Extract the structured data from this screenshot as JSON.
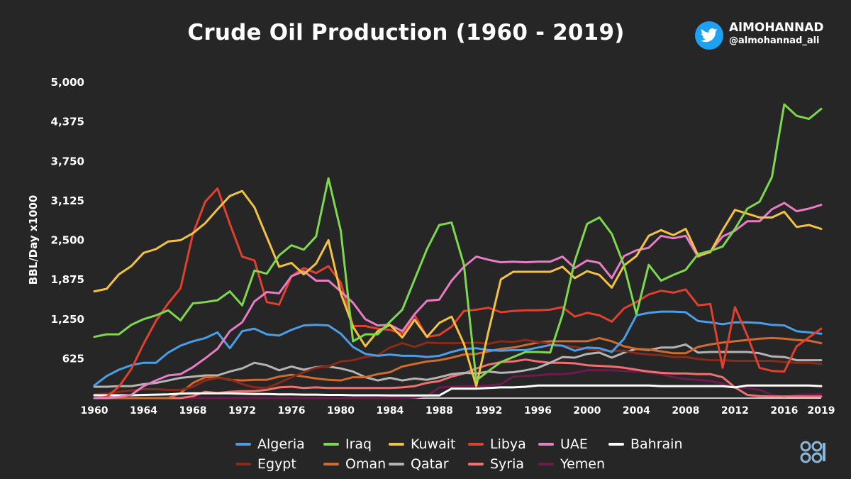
{
  "brand": {
    "name": "AlMOHANNAD",
    "handle": "@almohannad_ali",
    "icon": "twitter-bird-icon",
    "icon_color": "#1da1f2"
  },
  "logo": {
    "icon": "opec-logo-icon",
    "color": "#8ab8d8"
  },
  "chart_data": {
    "type": "line",
    "title": "Crude Oil Production (1960 - 2019)",
    "xlabel": "",
    "ylabel": "BBL/Day x1000",
    "x": [
      1960,
      1961,
      1962,
      1963,
      1964,
      1965,
      1966,
      1967,
      1968,
      1969,
      1970,
      1971,
      1972,
      1973,
      1974,
      1975,
      1976,
      1977,
      1978,
      1979,
      1980,
      1981,
      1982,
      1983,
      1984,
      1985,
      1986,
      1987,
      1988,
      1989,
      1990,
      1991,
      1992,
      1993,
      1994,
      1995,
      1996,
      1997,
      1998,
      1999,
      2000,
      2001,
      2002,
      2003,
      2004,
      2005,
      2006,
      2007,
      2008,
      2009,
      2010,
      2011,
      2012,
      2013,
      2014,
      2015,
      2016,
      2017,
      2018,
      2019
    ],
    "x_ticks": [
      1960,
      1964,
      1968,
      1972,
      1976,
      1980,
      1984,
      1988,
      1992,
      1996,
      2000,
      2004,
      2008,
      2012,
      2016,
      2019
    ],
    "y_ticks": [
      625,
      1250,
      1875,
      2500,
      3125,
      3750,
      4375,
      5000
    ],
    "y_tick_labels": [
      "625",
      "1,250",
      "1,875",
      "2,500",
      "3,125",
      "3,750",
      "4,375",
      "5,000"
    ],
    "ylim": [
      0,
      5000
    ],
    "xlim": [
      1960,
      2019
    ],
    "grid": false,
    "legend_position": "bottom",
    "series": [
      {
        "name": "Algeria",
        "color": "#4a9ee8",
        "values": [
          200,
          350,
          450,
          520,
          560,
          560,
          720,
          830,
          900,
          950,
          1040,
          790,
          1060,
          1100,
          1010,
          990,
          1080,
          1150,
          1160,
          1150,
          1020,
          810,
          700,
          670,
          690,
          670,
          670,
          650,
          670,
          730,
          780,
          790,
          760,
          750,
          760,
          760,
          800,
          840,
          830,
          750,
          800,
          790,
          730,
          940,
          1310,
          1350,
          1370,
          1370,
          1360,
          1220,
          1200,
          1170,
          1200,
          1200,
          1190,
          1160,
          1150,
          1060,
          1040,
          1020
        ]
      },
      {
        "name": "Iraq",
        "color": "#7ed84e",
        "values": [
          970,
          1010,
          1010,
          1160,
          1250,
          1310,
          1390,
          1230,
          1500,
          1520,
          1550,
          1690,
          1470,
          2020,
          1970,
          2260,
          2420,
          2350,
          2560,
          3480,
          2650,
          900,
          1010,
          1010,
          1210,
          1400,
          1880,
          2360,
          2740,
          2780,
          2110,
          280,
          430,
          570,
          650,
          730,
          730,
          720,
          1320,
          2170,
          2760,
          2860,
          2600,
          2100,
          1330,
          2110,
          1860,
          1950,
          2030,
          2280,
          2330,
          2400,
          2680,
          3000,
          3110,
          3500,
          4650,
          4470,
          4420,
          4580
        ]
      },
      {
        "name": "Kuwait",
        "color": "#f4c242",
        "values": [
          1690,
          1730,
          1960,
          2090,
          2300,
          2360,
          2480,
          2500,
          2610,
          2770,
          2990,
          3200,
          3280,
          3020,
          2550,
          2080,
          2140,
          1960,
          2130,
          2500,
          1660,
          1130,
          820,
          1060,
          1160,
          960,
          1240,
          970,
          1190,
          1290,
          860,
          190,
          1060,
          1880,
          2000,
          2000,
          2000,
          2000,
          2080,
          1900,
          2010,
          1950,
          1750,
          2100,
          2250,
          2570,
          2660,
          2580,
          2680,
          2260,
          2310,
          2660,
          2980,
          2920,
          2860,
          2860,
          2950,
          2710,
          2740,
          2680
        ]
      },
      {
        "name": "Libya",
        "color": "#e0402d",
        "values": [
          0,
          20,
          180,
          460,
          860,
          1220,
          1500,
          1740,
          2600,
          3110,
          3320,
          2760,
          2240,
          2180,
          1520,
          1480,
          1930,
          2060,
          1980,
          2090,
          1830,
          1140,
          1140,
          1100,
          1080,
          1020,
          1310,
          970,
          1000,
          1130,
          1380,
          1400,
          1430,
          1360,
          1380,
          1390,
          1390,
          1400,
          1440,
          1290,
          1350,
          1310,
          1210,
          1420,
          1520,
          1640,
          1700,
          1670,
          1720,
          1470,
          1490,
          480,
          1440,
          990,
          480,
          430,
          420,
          820,
          960,
          1100
        ]
      },
      {
        "name": "UAE",
        "color": "#e87cc5",
        "values": [
          0,
          0,
          20,
          50,
          190,
          280,
          360,
          380,
          490,
          630,
          780,
          1060,
          1200,
          1530,
          1680,
          1660,
          1930,
          2010,
          1860,
          1860,
          1690,
          1510,
          1250,
          1150,
          1160,
          1060,
          1330,
          1540,
          1560,
          1860,
          2080,
          2240,
          2190,
          2150,
          2160,
          2150,
          2160,
          2160,
          2240,
          2060,
          2180,
          2140,
          1900,
          2250,
          2340,
          2380,
          2570,
          2530,
          2570,
          2240,
          2320,
          2560,
          2650,
          2800,
          2800,
          2990,
          3090,
          2960,
          3000,
          3060
        ]
      },
      {
        "name": "Bahrain",
        "color": "#ffffff",
        "values": [
          45,
          45,
          45,
          45,
          50,
          55,
          60,
          70,
          75,
          75,
          75,
          75,
          70,
          65,
          65,
          60,
          60,
          55,
          55,
          50,
          50,
          45,
          45,
          45,
          42,
          42,
          42,
          42,
          42,
          150,
          150,
          150,
          160,
          170,
          170,
          180,
          200,
          200,
          200,
          200,
          200,
          200,
          200,
          200,
          200,
          200,
          190,
          190,
          190,
          190,
          190,
          190,
          170,
          200,
          200,
          200,
          200,
          200,
          200,
          190
        ]
      },
      {
        "name": "Egypt",
        "color": "#8a2a18",
        "values": [
          60,
          70,
          100,
          120,
          140,
          140,
          130,
          130,
          180,
          280,
          320,
          300,
          220,
          170,
          160,
          240,
          330,
          410,
          480,
          500,
          580,
          600,
          650,
          680,
          800,
          870,
          810,
          880,
          870,
          870,
          870,
          880,
          860,
          900,
          890,
          920,
          890,
          860,
          830,
          810,
          780,
          750,
          750,
          750,
          710,
          690,
          680,
          650,
          650,
          620,
          600,
          600,
          590,
          590,
          590,
          590,
          570,
          560,
          560,
          540
        ]
      },
      {
        "name": "Oman",
        "color": "#d06a2e",
        "values": [
          0,
          0,
          0,
          0,
          0,
          0,
          0,
          80,
          240,
          330,
          330,
          290,
          280,
          290,
          290,
          340,
          370,
          340,
          310,
          290,
          280,
          330,
          330,
          380,
          410,
          500,
          540,
          580,
          600,
          640,
          690,
          700,
          740,
          780,
          800,
          840,
          880,
          900,
          900,
          900,
          900,
          950,
          900,
          820,
          780,
          770,
          740,
          710,
          710,
          810,
          850,
          880,
          900,
          920,
          940,
          950,
          940,
          920,
          910,
          870
        ]
      },
      {
        "name": "Qatar",
        "color": "#b4b4b4",
        "values": [
          180,
          180,
          190,
          190,
          220,
          240,
          280,
          320,
          340,
          360,
          360,
          420,
          470,
          560,
          520,
          440,
          500,
          450,
          490,
          500,
          470,
          420,
          330,
          280,
          320,
          280,
          310,
          290,
          330,
          380,
          400,
          390,
          420,
          400,
          410,
          440,
          480,
          560,
          650,
          640,
          700,
          720,
          640,
          720,
          780,
          760,
          800,
          800,
          850,
          720,
          730,
          730,
          730,
          730,
          710,
          660,
          650,
          600,
          600,
          600
        ]
      },
      {
        "name": "Syria",
        "color": "#f07070",
        "values": [
          0,
          0,
          0,
          0,
          0,
          0,
          0,
          0,
          30,
          100,
          80,
          100,
          110,
          110,
          130,
          170,
          180,
          160,
          170,
          160,
          160,
          160,
          160,
          160,
          160,
          170,
          190,
          240,
          270,
          340,
          390,
          470,
          530,
          570,
          580,
          610,
          580,
          560,
          560,
          550,
          520,
          510,
          500,
          480,
          450,
          420,
          400,
          390,
          390,
          380,
          380,
          330,
          170,
          50,
          30,
          25,
          25,
          25,
          25,
          25
        ]
      },
      {
        "name": "Yemen",
        "color": "#6e1a4e",
        "values": [
          0,
          0,
          0,
          0,
          0,
          0,
          0,
          0,
          0,
          0,
          0,
          0,
          0,
          0,
          0,
          0,
          0,
          0,
          0,
          0,
          0,
          0,
          0,
          0,
          0,
          0,
          10,
          30,
          170,
          180,
          190,
          190,
          200,
          220,
          340,
          350,
          360,
          380,
          380,
          400,
          440,
          440,
          440,
          430,
          420,
          410,
          380,
          330,
          300,
          290,
          270,
          230,
          170,
          160,
          130,
          50,
          20,
          50,
          60,
          60
        ]
      }
    ]
  }
}
